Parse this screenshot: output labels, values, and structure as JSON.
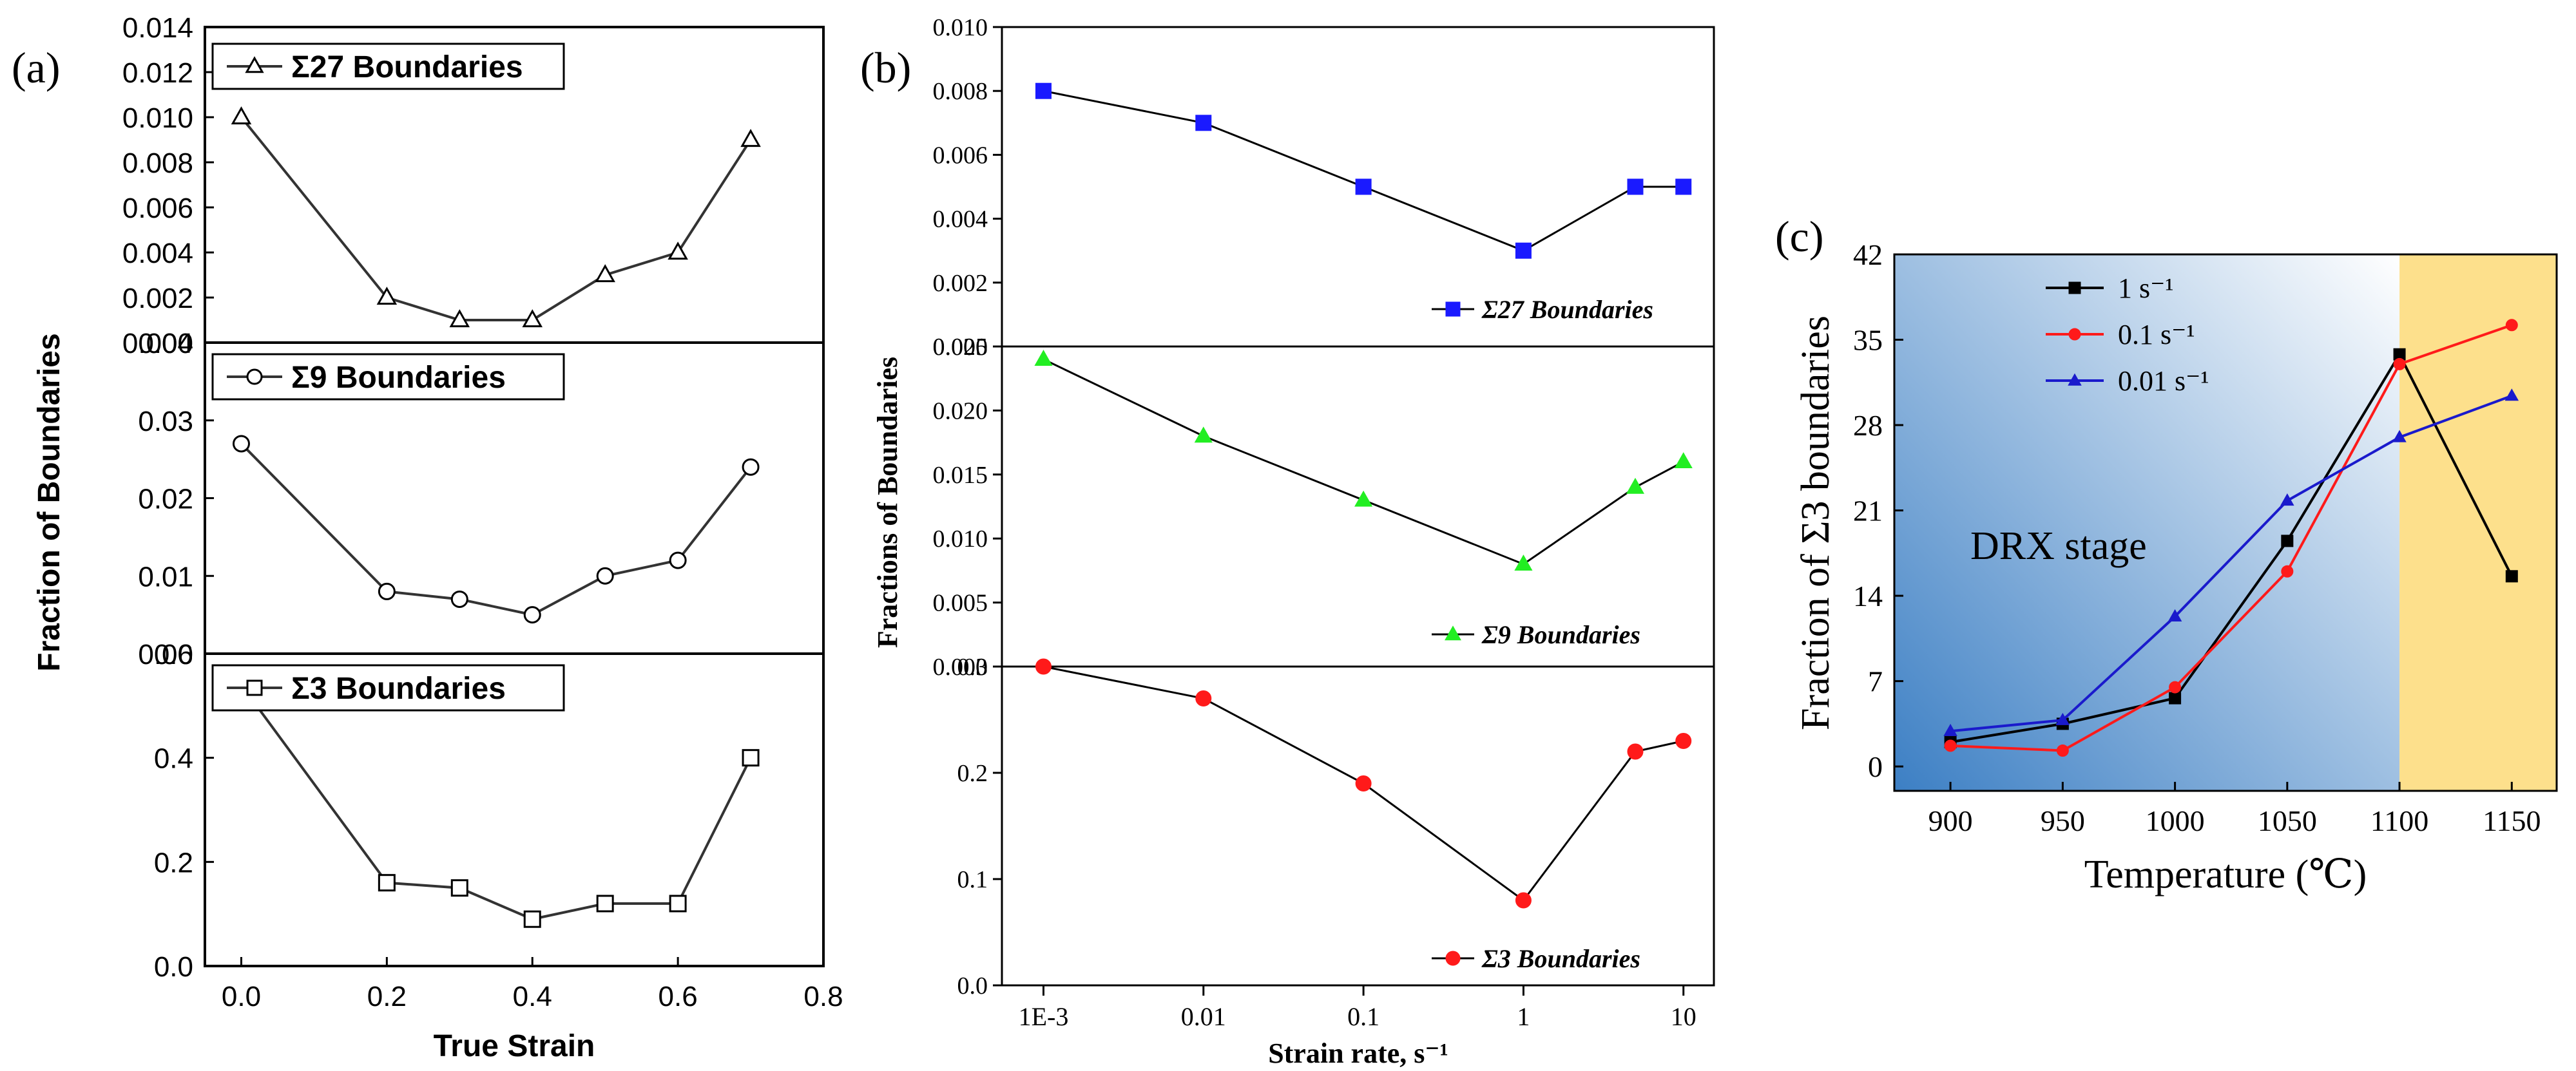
{
  "chart_data": [
    {
      "type": "line",
      "panel_label": "(a)",
      "xlabel": "True Strain",
      "ylabel": "Fraction of Boundaries",
      "xlim": [
        -0.05,
        0.8
      ],
      "xticks": [
        "0.0",
        "0.2",
        "0.4",
        "0.6",
        "0.8"
      ],
      "x": [
        0.0,
        0.2,
        0.3,
        0.4,
        0.5,
        0.6,
        0.7
      ],
      "subplots": [
        {
          "series": [
            {
              "name": "Σ27 Boundaries",
              "marker": "open-triangle",
              "color": "#000000",
              "values": [
                0.01,
                0.002,
                0.001,
                0.001,
                0.003,
                0.004,
                0.009
              ]
            }
          ],
          "ylim": [
            0,
            0.014
          ],
          "yticks": [
            "0.000",
            "0.002",
            "0.004",
            "0.006",
            "0.008",
            "0.010",
            "0.012",
            "0.014"
          ]
        },
        {
          "series": [
            {
              "name": "Σ9 Boundaries",
              "marker": "open-circle",
              "color": "#000000",
              "values": [
                0.027,
                0.008,
                0.007,
                0.005,
                0.01,
                0.012,
                0.024
              ]
            }
          ],
          "ylim": [
            0,
            0.04
          ],
          "yticks": [
            "0.00",
            "0.01",
            "0.02",
            "0.03",
            "0.04"
          ]
        },
        {
          "series": [
            {
              "name": "Σ3 Boundaries",
              "marker": "open-square",
              "color": "#000000",
              "values": [
                0.54,
                0.16,
                0.15,
                0.09,
                0.12,
                0.12,
                0.4
              ]
            }
          ],
          "ylim": [
            0,
            0.6
          ],
          "yticks": [
            "0.0",
            "0.2",
            "0.4",
            "0.6"
          ]
        }
      ]
    },
    {
      "type": "line",
      "panel_label": "(b)",
      "xlabel": "Strain rate, s⁻¹",
      "ylabel": "Fractions of  Boundaries",
      "xscale": "log",
      "xticks": [
        "1E-3",
        "0.01",
        "0.1",
        "1",
        "10"
      ],
      "x": [
        0.001,
        0.01,
        0.1,
        1,
        5,
        10
      ],
      "subplots": [
        {
          "series": [
            {
              "name": "Σ27 Boundaries",
              "marker": "filled-square",
              "color": "#1a1aff",
              "values": [
                0.008,
                0.007,
                0.005,
                0.003,
                0.005,
                0.005
              ]
            }
          ],
          "ylim": [
            0,
            0.01
          ],
          "yticks": [
            "0.000",
            "0.002",
            "0.004",
            "0.006",
            "0.008",
            "0.010"
          ]
        },
        {
          "series": [
            {
              "name": "Σ9 Boundaries",
              "marker": "filled-triangle",
              "color": "#22ee22",
              "values": [
                0.024,
                0.018,
                0.013,
                0.008,
                0.014,
                0.016
              ]
            }
          ],
          "ylim": [
            0,
            0.025
          ],
          "yticks": [
            "0.000",
            "0.005",
            "0.010",
            "0.015",
            "0.020",
            "0.025"
          ]
        },
        {
          "series": [
            {
              "name": "Σ3 Boundaries",
              "marker": "filled-circle",
              "color": "#ff1a1a",
              "values": [
                0.3,
                0.27,
                0.19,
                0.08,
                0.22,
                0.23
              ]
            }
          ],
          "ylim": [
            0,
            0.3
          ],
          "yticks": [
            "0.0",
            "0.1",
            "0.2",
            "0.3"
          ]
        }
      ]
    },
    {
      "type": "line",
      "panel_label": "(c)",
      "xlabel": "Temperature (℃)",
      "ylabel": "Fraction of Σ3 boundaries",
      "annotation": "DRX stage",
      "categories": [
        "900",
        "950",
        "1000",
        "1050",
        "1100",
        "1150"
      ],
      "x": [
        900,
        950,
        1000,
        1050,
        1100,
        1150
      ],
      "xlim": [
        875,
        1170
      ],
      "ylim": [
        -2,
        42
      ],
      "yticks": [
        "0",
        "7",
        "14",
        "21",
        "28",
        "35",
        "42"
      ],
      "series": [
        {
          "name": "1 s⁻¹",
          "marker": "filled-square",
          "color": "#000000",
          "values": [
            2.0,
            3.5,
            5.6,
            18.5,
            33.8,
            15.6
          ]
        },
        {
          "name": "0.1 s⁻¹",
          "marker": "filled-circle",
          "color": "#ff1a1a",
          "values": [
            1.7,
            1.3,
            6.5,
            16.0,
            33.0,
            36.2
          ]
        },
        {
          "name": "0.01 s⁻¹",
          "marker": "filled-triangle",
          "color": "#1a1acc",
          "values": [
            2.9,
            3.8,
            12.3,
            21.8,
            27.0,
            30.4
          ]
        }
      ],
      "background": {
        "left_gradient": [
          "#3c7fc4",
          "#ffffff"
        ],
        "right_fill": "#fde08c",
        "split_at": 1100
      }
    }
  ]
}
